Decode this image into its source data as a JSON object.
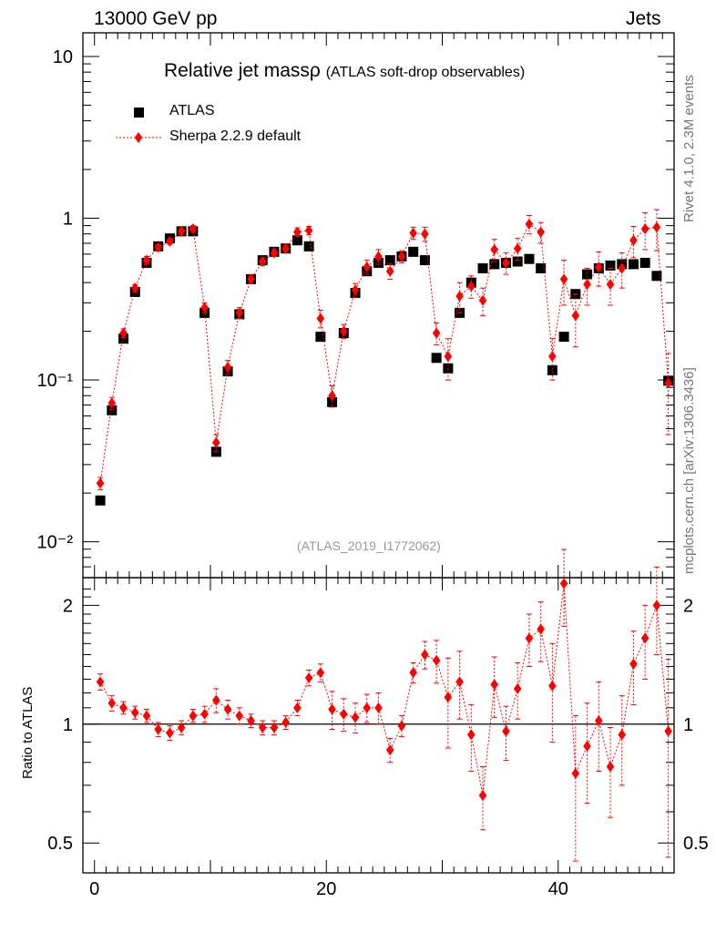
{
  "header": {
    "left": "13000 GeV pp",
    "right": "Jets"
  },
  "side_text": {
    "version": "Rivet 4.1.0,  2.3M events",
    "site": "mcplots.cern.ch [arXiv:1306.3436]"
  },
  "analysis_label": "(ATLAS_2019_I1772062)",
  "colors": {
    "data": "#000000",
    "mc": "#ff0000",
    "axis": "#000000"
  },
  "chart_data": [
    {
      "panel": "main",
      "type": "scatter",
      "title": "Relative jet massρ",
      "subtitle": "(ATLAS soft-drop observables)",
      "yscale": "log",
      "ylim": [
        0.006,
        14
      ],
      "xlim": [
        -1,
        50
      ],
      "x": [
        0.5,
        1.5,
        2.5,
        3.5,
        4.5,
        5.5,
        6.5,
        7.5,
        8.5,
        9.5,
        10.5,
        11.5,
        12.5,
        13.5,
        14.5,
        15.5,
        16.5,
        17.5,
        18.5,
        19.5,
        20.5,
        21.5,
        22.5,
        23.5,
        24.5,
        25.5,
        26.5,
        27.5,
        28.5,
        29.5,
        30.5,
        31.5,
        32.5,
        33.5,
        34.5,
        35.5,
        36.5,
        37.5,
        38.5,
        39.5,
        40.5,
        41.5,
        42.5,
        43.5,
        44.5,
        45.5,
        46.5,
        47.5,
        48.5,
        49.5
      ],
      "y_tick_labels": [
        "10",
        "1",
        "10⁻¹",
        "10⁻²"
      ],
      "y_tick_values": [
        10,
        1,
        0.1,
        0.01
      ],
      "series": [
        {
          "name": "ATLAS",
          "values": [
            0.018,
            0.065,
            0.18,
            0.35,
            0.53,
            0.67,
            0.75,
            0.83,
            0.83,
            0.26,
            0.036,
            0.113,
            0.255,
            0.42,
            0.55,
            0.62,
            0.65,
            0.73,
            0.67,
            0.185,
            0.073,
            0.195,
            0.345,
            0.47,
            0.53,
            0.55,
            0.58,
            0.62,
            0.55,
            0.137,
            0.118,
            0.26,
            0.4,
            0.49,
            0.52,
            0.53,
            0.54,
            0.56,
            0.49,
            0.115,
            0.185,
            0.34,
            0.45,
            0.49,
            0.51,
            0.52,
            0.52,
            0.53,
            0.44,
            0.099
          ]
        },
        {
          "name": "Sherpa 2.2.9 default",
          "values": [
            0.023,
            0.072,
            0.195,
            0.37,
            0.55,
            0.66,
            0.72,
            0.83,
            0.86,
            0.28,
            0.041,
            0.12,
            0.26,
            0.42,
            0.54,
            0.61,
            0.65,
            0.82,
            0.84,
            0.24,
            0.08,
            0.2,
            0.36,
            0.5,
            0.58,
            0.47,
            0.58,
            0.81,
            0.8,
            0.195,
            0.14,
            0.33,
            0.38,
            0.31,
            0.64,
            0.53,
            0.65,
            0.92,
            0.82,
            0.14,
            0.42,
            0.25,
            0.39,
            0.5,
            0.39,
            0.49,
            0.73,
            0.86,
            0.88,
            0.096
          ],
          "err_low": [
            0.002,
            0.006,
            0.012,
            0.02,
            0.03,
            0.03,
            0.03,
            0.04,
            0.04,
            0.02,
            0.005,
            0.012,
            0.02,
            0.025,
            0.03,
            0.03,
            0.03,
            0.05,
            0.05,
            0.03,
            0.012,
            0.02,
            0.035,
            0.05,
            0.06,
            0.05,
            0.05,
            0.07,
            0.08,
            0.03,
            0.04,
            0.07,
            0.06,
            0.06,
            0.1,
            0.08,
            0.1,
            0.12,
            0.12,
            0.04,
            0.13,
            0.09,
            0.1,
            0.12,
            0.1,
            0.12,
            0.16,
            0.22,
            0.25,
            0.05
          ],
          "err_high": [
            0.002,
            0.006,
            0.012,
            0.02,
            0.03,
            0.03,
            0.03,
            0.04,
            0.04,
            0.02,
            0.005,
            0.012,
            0.02,
            0.025,
            0.03,
            0.03,
            0.03,
            0.05,
            0.05,
            0.03,
            0.012,
            0.02,
            0.035,
            0.05,
            0.06,
            0.05,
            0.05,
            0.07,
            0.08,
            0.03,
            0.04,
            0.07,
            0.06,
            0.06,
            0.1,
            0.08,
            0.1,
            0.12,
            0.12,
            0.04,
            0.13,
            0.09,
            0.1,
            0.12,
            0.1,
            0.12,
            0.16,
            0.22,
            0.25,
            0.05
          ]
        }
      ],
      "legend": {
        "position": "top-left"
      }
    },
    {
      "panel": "ratio",
      "type": "scatter",
      "ylabel": "Ratio to ATLAS",
      "yscale": "log",
      "ylim": [
        0.42,
        2.35
      ],
      "xlim": [
        -1,
        50
      ],
      "y_tick_labels": [
        "2",
        "1",
        "0.5"
      ],
      "y_tick_values": [
        2,
        1,
        0.5
      ],
      "x_tick_labels": [
        "0",
        "20",
        "40"
      ],
      "x_tick_values": [
        0,
        20,
        40
      ],
      "reference_line": 1,
      "series": [
        {
          "name": "Sherpa 2.2.9 default / ATLAS",
          "values": [
            1.28,
            1.13,
            1.1,
            1.07,
            1.05,
            0.97,
            0.95,
            0.98,
            1.05,
            1.06,
            1.15,
            1.09,
            1.05,
            1.02,
            0.98,
            0.98,
            1.01,
            1.1,
            1.31,
            1.35,
            1.09,
            1.06,
            1.04,
            1.1,
            1.1,
            0.86,
            0.99,
            1.35,
            1.5,
            1.45,
            1.17,
            1.28,
            0.94,
            0.66,
            1.26,
            0.96,
            1.23,
            1.65,
            1.74,
            1.25,
            2.27,
            0.75,
            0.88,
            1.02,
            0.78,
            0.94,
            1.42,
            1.65,
            2.0,
            0.96
          ],
          "err_low": [
            0.06,
            0.05,
            0.04,
            0.04,
            0.04,
            0.04,
            0.04,
            0.04,
            0.04,
            0.05,
            0.08,
            0.06,
            0.05,
            0.04,
            0.04,
            0.04,
            0.04,
            0.05,
            0.06,
            0.07,
            0.12,
            0.1,
            0.09,
            0.09,
            0.1,
            0.06,
            0.06,
            0.08,
            0.12,
            0.18,
            0.3,
            0.25,
            0.18,
            0.12,
            0.22,
            0.15,
            0.2,
            0.25,
            0.3,
            0.35,
            0.5,
            0.3,
            0.25,
            0.26,
            0.2,
            0.24,
            0.3,
            0.35,
            0.5,
            0.5
          ],
          "err_high": [
            0.06,
            0.05,
            0.04,
            0.04,
            0.04,
            0.04,
            0.04,
            0.04,
            0.04,
            0.05,
            0.08,
            0.06,
            0.05,
            0.04,
            0.04,
            0.04,
            0.04,
            0.05,
            0.06,
            0.07,
            0.12,
            0.1,
            0.09,
            0.09,
            0.1,
            0.06,
            0.06,
            0.08,
            0.12,
            0.18,
            0.3,
            0.25,
            0.18,
            0.12,
            0.22,
            0.15,
            0.2,
            0.25,
            0.3,
            0.35,
            0.5,
            0.3,
            0.25,
            0.26,
            0.2,
            0.24,
            0.3,
            0.35,
            0.5,
            0.5
          ]
        }
      ]
    }
  ]
}
